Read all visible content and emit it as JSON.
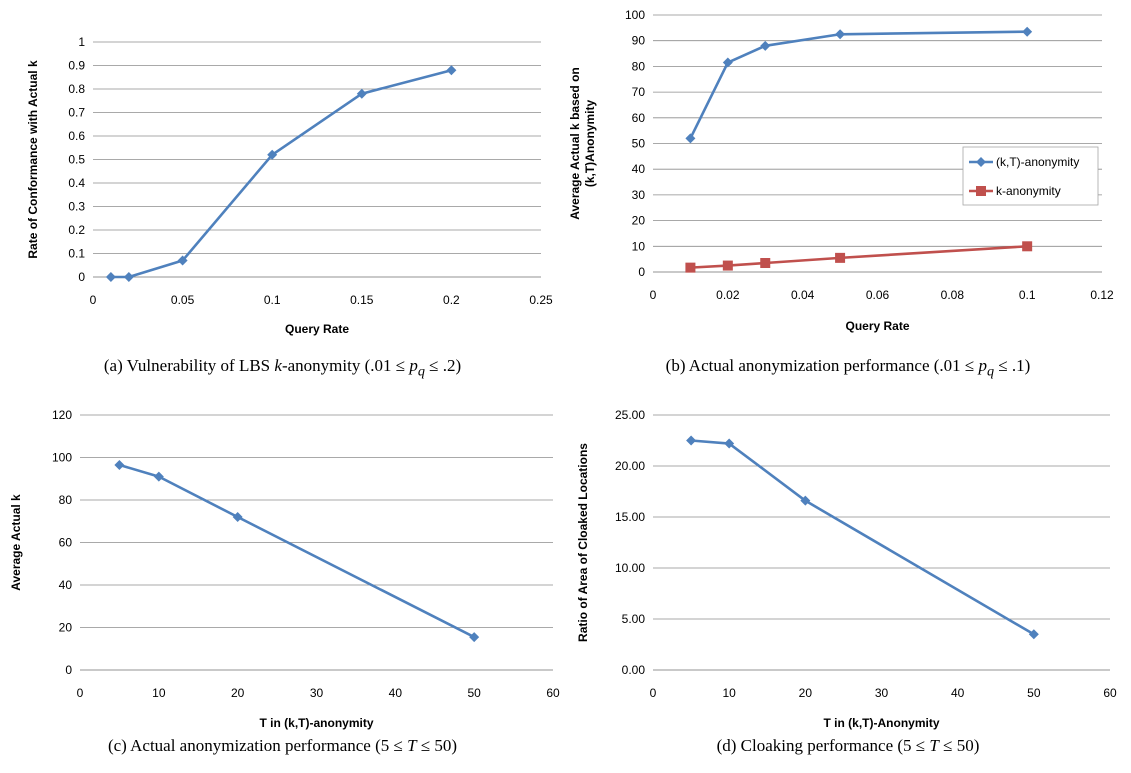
{
  "captions": {
    "a": {
      "prefix": "(a) Vulnerability of LBS ",
      "k": "k",
      "mid": "-anonymity (.01 ≤ ",
      "p": "p",
      "sub": "q",
      "suffix": " ≤ .2)"
    },
    "b": {
      "prefix": "(b) Actual anonymization performance (.01 ≤ ",
      "p": "p",
      "sub": "q",
      "suffix": " ≤ .1)"
    },
    "c": {
      "prefix": "(c) Actual anonymization performance (5 ≤ ",
      "T": "T",
      "suffix": " ≤ 50)"
    },
    "d": {
      "prefix": "(d) Cloaking performance (5 ≤ ",
      "T": "T",
      "suffix": " ≤ 50)"
    }
  },
  "colors": {
    "blue": "#4F81BD",
    "red": "#C0504D",
    "grid": "#8C8C8C"
  },
  "chart_data": [
    {
      "id": "a",
      "type": "line",
      "xlabel": "Query Rate",
      "ylabel": "Rate of Conformance with Actual k",
      "xlim": [
        0,
        0.25
      ],
      "ylim": [
        0,
        1
      ],
      "xticks": [
        0,
        0.05,
        0.1,
        0.15,
        0.2,
        0.25
      ],
      "xtick_labels": [
        "0",
        "0.05",
        "0.1",
        "0.15",
        "0.2",
        "0.25"
      ],
      "yticks": [
        0,
        0.1,
        0.2,
        0.3,
        0.4,
        0.5,
        0.6,
        0.7,
        0.8,
        0.9,
        1
      ],
      "ytick_labels": [
        "0",
        "0.1",
        "0.2",
        "0.3",
        "0.4",
        "0.5",
        "0.6",
        "0.7",
        "0.8",
        "0.9",
        "1"
      ],
      "grid": "horizontal",
      "legend": null,
      "series": [
        {
          "name": "",
          "color": "#4F81BD",
          "marker": "diamond",
          "x": [
            0.01,
            0.02,
            0.05,
            0.1,
            0.15,
            0.2
          ],
          "y": [
            0,
            0,
            0.07,
            0.52,
            0.78,
            0.88
          ]
        }
      ]
    },
    {
      "id": "b",
      "type": "line",
      "xlabel": "Query Rate",
      "ylabel": "Average Actual k based on (k,T)Anonymity",
      "ylabel_lines": [
        "Average Actual k based on",
        "(k,T)Anonymity"
      ],
      "xlim": [
        0,
        0.12
      ],
      "ylim": [
        0,
        100
      ],
      "xticks": [
        0,
        0.02,
        0.04,
        0.06,
        0.08,
        0.1,
        0.12
      ],
      "xtick_labels": [
        "0",
        "0.02",
        "0.04",
        "0.06",
        "0.08",
        "0.1",
        "0.12"
      ],
      "yticks": [
        0,
        10,
        20,
        30,
        40,
        50,
        60,
        70,
        80,
        90,
        100
      ],
      "ytick_labels": [
        "0",
        "10",
        "20",
        "30",
        "40",
        "50",
        "60",
        "70",
        "80",
        "90",
        "100"
      ],
      "grid": "horizontal",
      "legend": "right",
      "series": [
        {
          "name": "(k,T)-anonymity",
          "color": "#4F81BD",
          "marker": "diamond",
          "x": [
            0.01,
            0.02,
            0.03,
            0.05,
            0.1
          ],
          "y": [
            52,
            81.5,
            88,
            92.5,
            93.5
          ]
        },
        {
          "name": "k-anonymity",
          "color": "#C0504D",
          "marker": "square",
          "x": [
            0.01,
            0.02,
            0.03,
            0.05,
            0.1
          ],
          "y": [
            1.7,
            2.5,
            3.5,
            5.5,
            10
          ]
        }
      ]
    },
    {
      "id": "c",
      "type": "line",
      "xlabel": "T in (k,T)-anonymity",
      "ylabel": "Average Actual k",
      "xlim": [
        0,
        60
      ],
      "ylim": [
        0,
        120
      ],
      "xticks": [
        0,
        10,
        20,
        30,
        40,
        50,
        60
      ],
      "xtick_labels": [
        "0",
        "10",
        "20",
        "30",
        "40",
        "50",
        "60"
      ],
      "yticks": [
        0,
        20,
        40,
        60,
        80,
        100,
        120
      ],
      "ytick_labels": [
        "0",
        "20",
        "40",
        "60",
        "80",
        "100",
        "120"
      ],
      "grid": "horizontal",
      "legend": null,
      "series": [
        {
          "name": "",
          "color": "#4F81BD",
          "marker": "diamond",
          "x": [
            5,
            10,
            20,
            50
          ],
          "y": [
            96.5,
            91,
            72,
            15.5
          ]
        }
      ]
    },
    {
      "id": "d",
      "type": "line",
      "xlabel": "T in (k,T)-Anonymity",
      "ylabel": "Ratio of Area of Cloaked Locations",
      "xlim": [
        0,
        60
      ],
      "ylim": [
        0,
        25
      ],
      "xticks": [
        0,
        10,
        20,
        30,
        40,
        50,
        60
      ],
      "xtick_labels": [
        "0",
        "10",
        "20",
        "30",
        "40",
        "50",
        "60"
      ],
      "yticks": [
        0,
        5,
        10,
        15,
        20,
        25
      ],
      "ytick_labels": [
        "0.00",
        "5.00",
        "10.00",
        "15.00",
        "20.00",
        "25.00"
      ],
      "grid": "horizontal",
      "legend": null,
      "series": [
        {
          "name": "",
          "color": "#4F81BD",
          "marker": "diamond",
          "x": [
            5,
            10,
            20,
            50
          ],
          "y": [
            22.5,
            22.2,
            16.6,
            3.5
          ]
        }
      ]
    }
  ]
}
